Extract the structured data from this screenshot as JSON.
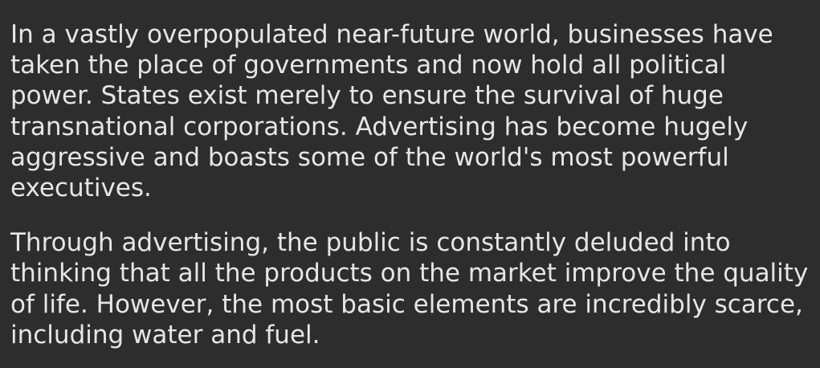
{
  "paragraphs": [
    "In a vastly overpopulated near-future world, businesses have taken the place of governments and now hold all political power. States exist merely to ensure the survival of huge transnational corporations. Advertising has become hugely aggressive and boasts some of the world's most powerful executives.",
    "Through advertising, the public is constantly deluded into thinking that all the products on the market improve the quality of life. However, the most basic elements are incredibly scarce, including water and fuel."
  ],
  "colors": {
    "background": "#2d2d2d",
    "text": "#e6e6e6"
  }
}
